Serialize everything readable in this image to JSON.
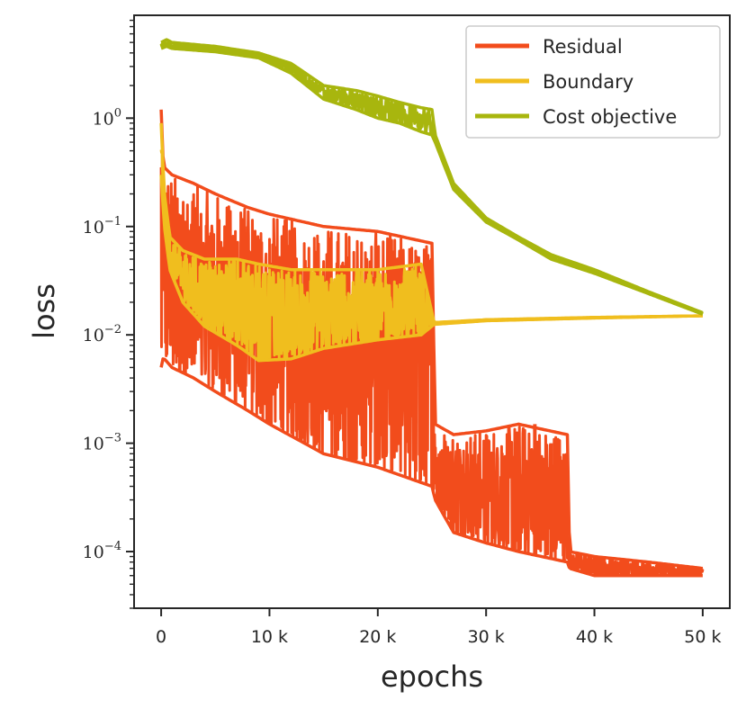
{
  "chart_data": {
    "type": "line",
    "title": "",
    "xlabel": "epochs",
    "ylabel": "loss",
    "yscale": "log",
    "xlim": [
      -2500,
      52500
    ],
    "ylim": [
      3e-05,
      8.9
    ],
    "x_ticks": [
      {
        "value": 0,
        "label": "0"
      },
      {
        "value": 10000,
        "label": "10 k"
      },
      {
        "value": 20000,
        "label": "20 k"
      },
      {
        "value": 30000,
        "label": "30 k"
      },
      {
        "value": 40000,
        "label": "40 k"
      },
      {
        "value": 50000,
        "label": "50 k"
      }
    ],
    "y_ticks": [
      {
        "value": 1,
        "base": "10",
        "exp": "0"
      },
      {
        "value": 0.1,
        "base": "10",
        "exp": "−1"
      },
      {
        "value": 0.01,
        "base": "10",
        "exp": "−2"
      },
      {
        "value": 0.001,
        "base": "10",
        "exp": "−3"
      },
      {
        "value": 0.0001,
        "base": "10",
        "exp": "−4"
      }
    ],
    "legend_position": "top-right",
    "grid": false,
    "series": [
      {
        "name": "Residual",
        "color": "#f24c1c",
        "noisy": true,
        "x": [
          0,
          100,
          300,
          1000,
          3000,
          5000,
          8000,
          10000,
          15000,
          20000,
          25000,
          25300,
          27000,
          30000,
          33000,
          37500,
          37700,
          40000,
          45000,
          50000
        ],
        "upper": [
          1.2,
          0.5,
          0.35,
          0.3,
          0.25,
          0.2,
          0.15,
          0.13,
          0.1,
          0.09,
          0.07,
          0.0015,
          0.0012,
          0.0013,
          0.0015,
          0.0012,
          0.0001,
          9e-05,
          8e-05,
          7e-05
        ],
        "lower": [
          0.005,
          0.006,
          0.006,
          0.005,
          0.004,
          0.003,
          0.002,
          0.0015,
          0.0008,
          0.0006,
          0.0004,
          0.0003,
          0.00015,
          0.00012,
          0.0001,
          8e-05,
          7e-05,
          6e-05,
          6e-05,
          6e-05
        ],
        "spikes": [
          {
            "x": 34500,
            "y": 0.0015
          },
          {
            "x": 36000,
            "y": 0.001
          },
          {
            "x": 37200,
            "y": 0.0008
          },
          {
            "x": 33000,
            "y": 0.0007
          }
        ]
      },
      {
        "name": "Boundary",
        "color": "#f0be1e",
        "noisy": true,
        "x": [
          0,
          100,
          300,
          800,
          2000,
          4000,
          7000,
          9000,
          12000,
          15000,
          20000,
          24000,
          25200,
          30000,
          40000,
          50000
        ],
        "upper": [
          0.9,
          0.5,
          0.2,
          0.08,
          0.06,
          0.05,
          0.05,
          0.045,
          0.04,
          0.04,
          0.04,
          0.045,
          0.013,
          0.0138,
          0.0145,
          0.015
        ],
        "lower": [
          0.3,
          0.2,
          0.1,
          0.04,
          0.02,
          0.012,
          0.008,
          0.0058,
          0.006,
          0.0075,
          0.009,
          0.01,
          0.0125,
          0.0135,
          0.0143,
          0.015
        ]
      },
      {
        "name": "Cost objective",
        "color": "#a8b60e",
        "noisy": true,
        "x": [
          0,
          500,
          1000,
          5000,
          9000,
          12000,
          15000,
          18000,
          20000,
          22000,
          24000,
          25000,
          25300,
          27000,
          30000,
          33000,
          36000,
          40000,
          45000,
          50000
        ],
        "upper": [
          5.0,
          5.3,
          5.0,
          4.6,
          4.0,
          3.2,
          2.0,
          1.8,
          1.6,
          1.4,
          1.25,
          1.2,
          0.7,
          0.25,
          0.12,
          0.08,
          0.055,
          0.04,
          0.025,
          0.016
        ],
        "lower": [
          4.4,
          4.6,
          4.4,
          4.1,
          3.6,
          2.6,
          1.5,
          1.2,
          1.0,
          0.9,
          0.75,
          0.7,
          0.6,
          0.22,
          0.11,
          0.075,
          0.05,
          0.037,
          0.024,
          0.0155
        ]
      }
    ]
  }
}
